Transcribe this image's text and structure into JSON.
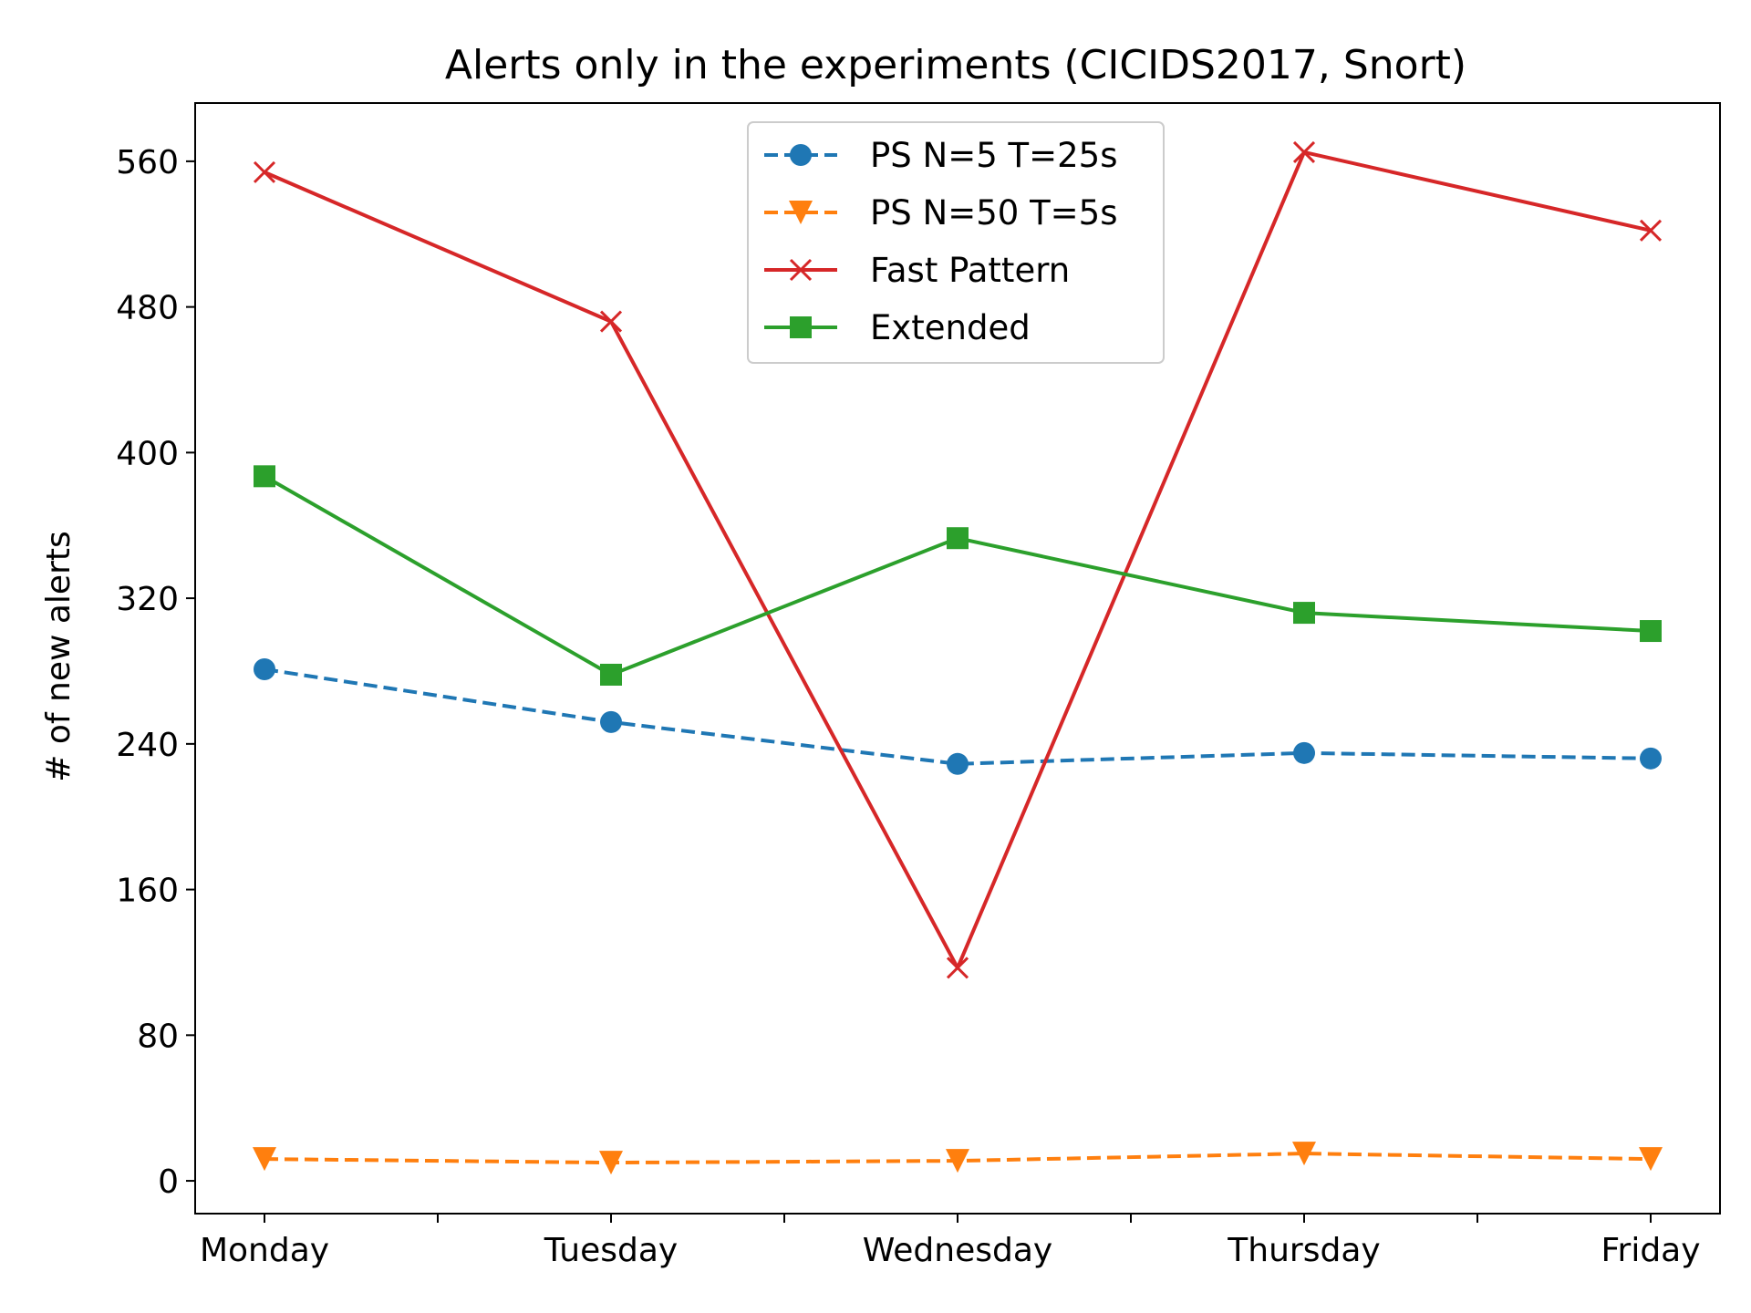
{
  "chart_data": {
    "type": "line",
    "title": "Alerts only in the experiments (CICIDS2017, Snort)",
    "xlabel": "",
    "ylabel": "# of new alerts",
    "categories": [
      "Monday",
      "Tuesday",
      "Wednesday",
      "Thursday",
      "Friday"
    ],
    "ylim": [
      -18,
      592
    ],
    "yticks": [
      0,
      80,
      160,
      240,
      320,
      400,
      480,
      560
    ],
    "minor_xticks": [
      0.5,
      1.5,
      2.5,
      3.5
    ],
    "legend_position": "upper center",
    "grid": false,
    "series": [
      {
        "name": "PS N=5 T=25s",
        "values": [
          281,
          252,
          229,
          235,
          232
        ],
        "color": "#1f77b4",
        "dash": "dashed",
        "marker": "circle"
      },
      {
        "name": "PS N=50 T=5s",
        "values": [
          12,
          10,
          11,
          15,
          12
        ],
        "color": "#ff7f0e",
        "dash": "dashed",
        "marker": "triangle-down"
      },
      {
        "name": "Fast Pattern",
        "values": [
          554,
          472,
          117,
          565,
          522
        ],
        "color": "#d62728",
        "dash": "solid",
        "marker": "x"
      },
      {
        "name": "Extended",
        "values": [
          387,
          278,
          353,
          312,
          302
        ],
        "color": "#2ca02c",
        "dash": "solid",
        "marker": "square"
      }
    ]
  }
}
